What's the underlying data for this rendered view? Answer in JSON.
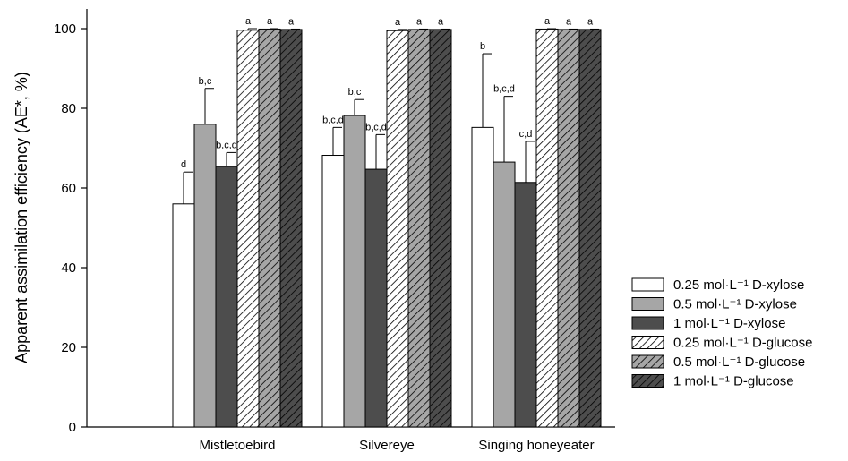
{
  "chart_data": {
    "type": "bar",
    "xlabel": "",
    "ylabel": "Apparent assimilation efficiency (AE*, %)",
    "ylim": [
      0,
      105
    ],
    "yticks": [
      0,
      20,
      40,
      60,
      80,
      100
    ],
    "grid": false,
    "legend_position": "right",
    "categories": [
      "Mistletoebird",
      "Silvereye",
      "Singing honeyeater"
    ],
    "series": [
      {
        "name": "0.25 mol·L⁻¹ D-xylose",
        "fill": "#ffffff",
        "pattern": "solid",
        "values": [
          56,
          68.2,
          75.2
        ],
        "error": [
          8,
          7,
          18.5
        ],
        "letters": [
          "d",
          "b,c,d",
          "b"
        ]
      },
      {
        "name": "0.5 mol·L⁻¹ D-xylose",
        "fill": "#a6a6a6",
        "pattern": "solid",
        "values": [
          76,
          78.2,
          66.5
        ],
        "error": [
          9,
          4,
          16.5
        ],
        "letters": [
          "b,c",
          "b,c",
          "b,c,d"
        ]
      },
      {
        "name": "1 mol·L⁻¹ D-xylose",
        "fill": "#4d4d4d",
        "pattern": "solid",
        "values": [
          65.4,
          64.7,
          61.4
        ],
        "error": [
          3.5,
          8.7,
          10.3
        ],
        "letters": [
          "b,c,d",
          "b,c,d",
          "c,d"
        ]
      },
      {
        "name": "0.25 mol·L⁻¹ D-glucose",
        "fill": "#ffffff",
        "pattern": "hatch",
        "values": [
          99.6,
          99.5,
          99.9
        ],
        "error": [
          0.4,
          0.3,
          0.1
        ],
        "letters": [
          "a",
          "a",
          "a"
        ]
      },
      {
        "name": "0.5 mol·L⁻¹ D-glucose",
        "fill": "#a6a6a6",
        "pattern": "hatch",
        "values": [
          99.9,
          99.8,
          99.8
        ],
        "error": [
          0.1,
          0.1,
          0.1
        ],
        "letters": [
          "a",
          "a",
          "a"
        ]
      },
      {
        "name": "1 mol·L⁻¹ D-glucose",
        "fill": "#4d4d4d",
        "pattern": "hatch",
        "values": [
          99.8,
          99.8,
          99.8
        ],
        "error": [
          0.1,
          0.1,
          0.1
        ],
        "letters": [
          "a",
          "a",
          "a"
        ]
      }
    ]
  }
}
